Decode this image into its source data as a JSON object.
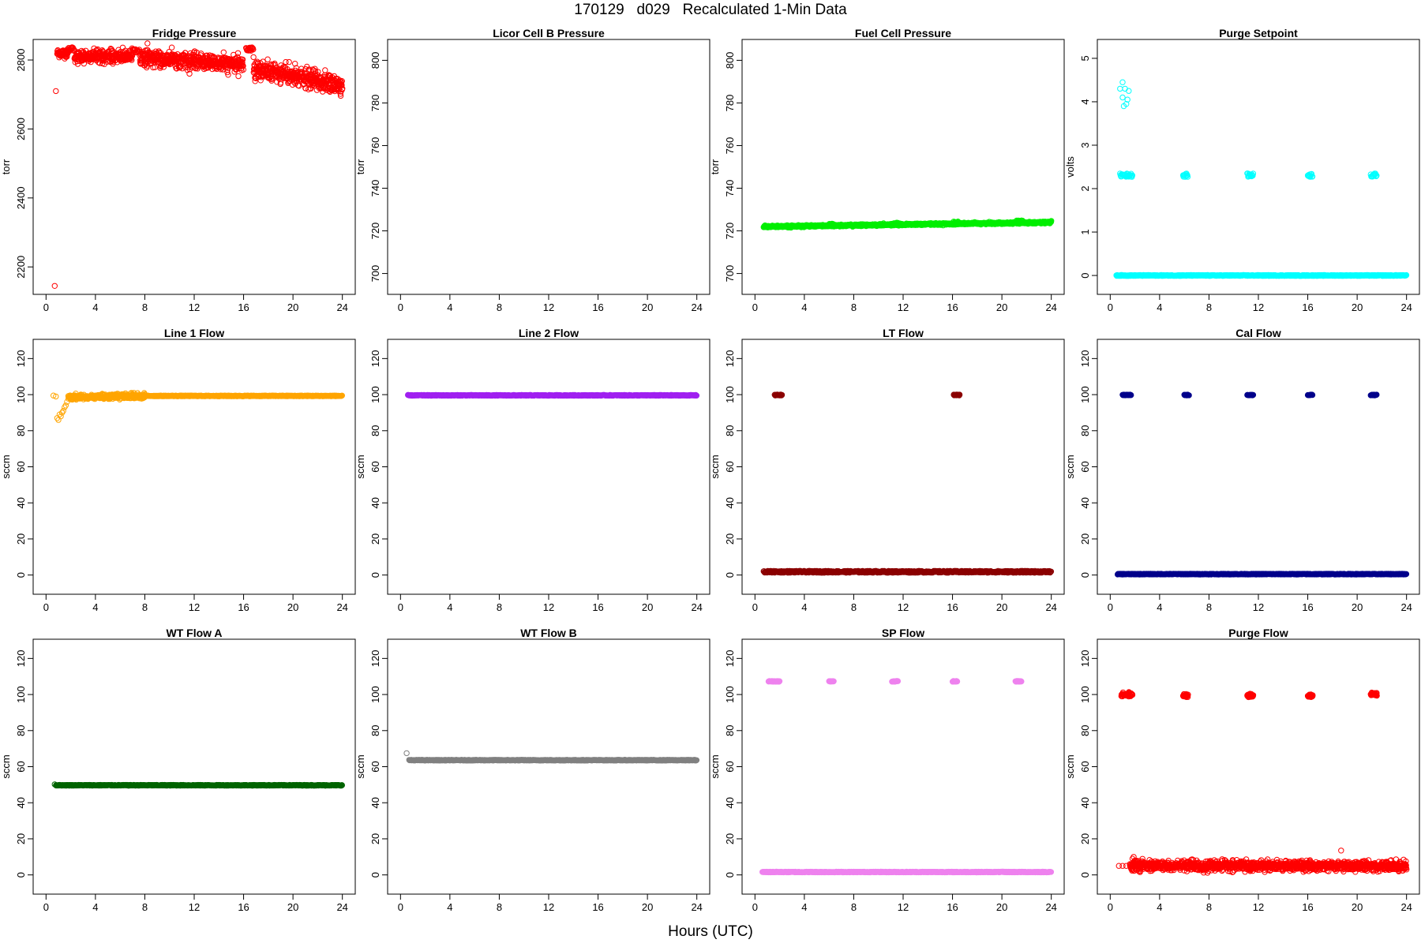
{
  "figure": {
    "title": "170129   d029   Recalculated 1-Min Data",
    "xlabel": "Hours (UTC)"
  },
  "chart_data": [
    {
      "type": "scatter",
      "title": "Fridge Pressure",
      "ylabel": "torr",
      "xlim": [
        0,
        24
      ],
      "ylim": [
        2150,
        2830
      ],
      "xticks": [
        0,
        4,
        8,
        12,
        16,
        20,
        24
      ],
      "yticks": [
        2200,
        2400,
        2600,
        2800
      ],
      "color": "#ff0000",
      "marker": "open-circle",
      "series": [
        {
          "kind": "points",
          "x": [
            0.7,
            0.8
          ],
          "y": [
            2145,
            2710
          ]
        },
        {
          "kind": "noisy",
          "x0": 0.9,
          "x1": 1.8,
          "y0": 2820,
          "y1": 2820,
          "noise": 12
        },
        {
          "kind": "band",
          "x0": 1.8,
          "x1": 2.3,
          "y": 2832,
          "spread": 5
        },
        {
          "kind": "noisy",
          "x0": 2.3,
          "x1": 7.0,
          "y0": 2810,
          "y1": 2810,
          "noise": 18
        },
        {
          "kind": "band",
          "x0": 7.0,
          "x1": 7.6,
          "y": 2827,
          "spread": 5
        },
        {
          "kind": "noisy",
          "x0": 7.6,
          "x1": 16.0,
          "y0": 2808,
          "y1": 2785,
          "noise": 22
        },
        {
          "kind": "band",
          "x0": 16.2,
          "x1": 16.8,
          "y": 2832,
          "spread": 5
        },
        {
          "kind": "noisy",
          "x0": 16.8,
          "x1": 24.0,
          "y0": 2775,
          "y1": 2725,
          "noise": 28
        }
      ]
    },
    {
      "type": "scatter",
      "title": "Licor Cell B Pressure",
      "ylabel": "torr",
      "xlim": [
        0,
        24
      ],
      "ylim": [
        695,
        805
      ],
      "xticks": [
        0,
        4,
        8,
        12,
        16,
        20,
        24
      ],
      "yticks": [
        700,
        720,
        740,
        760,
        780,
        800
      ],
      "color": "#000000",
      "marker": "open-circle",
      "series": []
    },
    {
      "type": "scatter",
      "title": "Fuel Cell Pressure",
      "ylabel": "torr",
      "xlim": [
        0,
        24
      ],
      "ylim": [
        695,
        805
      ],
      "xticks": [
        0,
        4,
        8,
        12,
        16,
        20,
        24
      ],
      "yticks": [
        700,
        720,
        740,
        760,
        780,
        800
      ],
      "color": "#00ee00",
      "marker": "open-circle",
      "series": [
        {
          "kind": "noisy",
          "x0": 0.7,
          "x1": 24.0,
          "y0": 722,
          "y1": 724,
          "noise": 0.4
        },
        {
          "kind": "band",
          "x0": 6.0,
          "x1": 6.4,
          "y": 723,
          "spread": 0.4
        },
        {
          "kind": "band",
          "x0": 11.2,
          "x1": 11.7,
          "y": 723.5,
          "spread": 0.4
        },
        {
          "kind": "band",
          "x0": 16.1,
          "x1": 16.5,
          "y": 724,
          "spread": 0.4
        },
        {
          "kind": "band",
          "x0": 21.2,
          "x1": 21.7,
          "y": 724.5,
          "spread": 0.4
        }
      ]
    },
    {
      "type": "scatter",
      "title": "Purge Setpoint",
      "ylabel": "volts",
      "xlim": [
        0,
        24
      ],
      "ylim": [
        -0.2,
        5.2
      ],
      "xticks": [
        0,
        4,
        8,
        12,
        16,
        20,
        24
      ],
      "yticks": [
        0,
        1,
        2,
        3,
        4,
        5
      ],
      "color": "#00ffff",
      "marker": "open-circle",
      "series": [
        {
          "kind": "points",
          "x": [
            0.8,
            1.0,
            1.2,
            1.0,
            1.1,
            1.3,
            1.4,
            1.5,
            1.2
          ],
          "y": [
            4.3,
            4.45,
            4.3,
            4.1,
            3.9,
            3.95,
            4.05,
            4.25,
            0
          ]
        },
        {
          "kind": "band",
          "x0": 0.8,
          "x1": 1.8,
          "y": 2.31,
          "spread": 0.04
        },
        {
          "kind": "band",
          "x0": 5.9,
          "x1": 6.3,
          "y": 2.31,
          "spread": 0.04
        },
        {
          "kind": "band",
          "x0": 11.1,
          "x1": 11.6,
          "y": 2.31,
          "spread": 0.04
        },
        {
          "kind": "band",
          "x0": 16.0,
          "x1": 16.4,
          "y": 2.31,
          "spread": 0.04
        },
        {
          "kind": "band",
          "x0": 21.1,
          "x1": 21.6,
          "y": 2.31,
          "spread": 0.04
        },
        {
          "kind": "band",
          "x0": 0.5,
          "x1": 24.0,
          "y": 0,
          "spread": 0.01
        }
      ]
    },
    {
      "type": "scatter",
      "title": "Line 1 Flow",
      "ylabel": "sccm",
      "xlim": [
        0,
        24
      ],
      "ylim": [
        -5,
        125
      ],
      "xticks": [
        0,
        4,
        8,
        12,
        16,
        20,
        24
      ],
      "yticks": [
        0,
        20,
        40,
        60,
        80,
        100,
        120
      ],
      "color": "#ffa500",
      "marker": "open-circle",
      "series": [
        {
          "kind": "points",
          "x": [
            0.6,
            0.8,
            0.9,
            1.0,
            1.1,
            1.2,
            1.3,
            1.4,
            1.5,
            1.6,
            1.7
          ],
          "y": [
            99.5,
            99,
            87,
            86,
            89,
            88,
            90,
            91,
            93,
            94,
            96
          ]
        },
        {
          "kind": "noisy",
          "x0": 1.8,
          "x1": 8.0,
          "y0": 98.5,
          "y1": 99.3,
          "noise": 1.3
        },
        {
          "kind": "band",
          "x0": 8.0,
          "x1": 24.0,
          "y": 99.3,
          "spread": 0.2
        }
      ]
    },
    {
      "type": "scatter",
      "title": "Line 2 Flow",
      "ylabel": "sccm",
      "xlim": [
        0,
        24
      ],
      "ylim": [
        -5,
        125
      ],
      "xticks": [
        0,
        4,
        8,
        12,
        16,
        20,
        24
      ],
      "yticks": [
        0,
        20,
        40,
        60,
        80,
        100,
        120
      ],
      "color": "#a020f0",
      "marker": "open-circle",
      "series": [
        {
          "kind": "band",
          "x0": 0.6,
          "x1": 24.0,
          "y": 99.6,
          "spread": 0.2
        }
      ]
    },
    {
      "type": "scatter",
      "title": "LT Flow",
      "ylabel": "sccm",
      "xlim": [
        0,
        24
      ],
      "ylim": [
        -5,
        125
      ],
      "xticks": [
        0,
        4,
        8,
        12,
        16,
        20,
        24
      ],
      "yticks": [
        0,
        20,
        40,
        60,
        80,
        100,
        120
      ],
      "color": "#8b0000",
      "marker": "open-circle",
      "series": [
        {
          "kind": "band",
          "x0": 1.6,
          "x1": 2.2,
          "y": 99.8,
          "spread": 0.3
        },
        {
          "kind": "band",
          "x0": 16.1,
          "x1": 16.6,
          "y": 99.8,
          "spread": 0.3
        },
        {
          "kind": "band",
          "x0": 0.7,
          "x1": 24.0,
          "y": 1.8,
          "spread": 0.5
        }
      ]
    },
    {
      "type": "scatter",
      "title": "Cal Flow",
      "ylabel": "sccm",
      "xlim": [
        0,
        24
      ],
      "ylim": [
        -5,
        125
      ],
      "xticks": [
        0,
        4,
        8,
        12,
        16,
        20,
        24
      ],
      "yticks": [
        0,
        20,
        40,
        60,
        80,
        100,
        120
      ],
      "color": "#00008b",
      "marker": "open-circle",
      "series": [
        {
          "kind": "band",
          "x0": 1.0,
          "x1": 1.7,
          "y": 99.8,
          "spread": 0.2
        },
        {
          "kind": "band",
          "x0": 6.0,
          "x1": 6.4,
          "y": 99.8,
          "spread": 0.2
        },
        {
          "kind": "band",
          "x0": 11.1,
          "x1": 11.6,
          "y": 99.8,
          "spread": 0.2
        },
        {
          "kind": "band",
          "x0": 16.0,
          "x1": 16.4,
          "y": 99.8,
          "spread": 0.2
        },
        {
          "kind": "band",
          "x0": 21.1,
          "x1": 21.6,
          "y": 99.8,
          "spread": 0.2
        },
        {
          "kind": "band",
          "x0": 0.6,
          "x1": 24.0,
          "y": 0.5,
          "spread": 0.2
        }
      ]
    },
    {
      "type": "scatter",
      "title": "WT Flow A",
      "ylabel": "sccm",
      "xlim": [
        0,
        24
      ],
      "ylim": [
        -5,
        125
      ],
      "xticks": [
        0,
        4,
        8,
        12,
        16,
        20,
        24
      ],
      "yticks": [
        0,
        20,
        40,
        60,
        80,
        100,
        120
      ],
      "color": "#006400",
      "marker": "open-circle",
      "series": [
        {
          "kind": "points",
          "x": [
            0.7
          ],
          "y": [
            50.2
          ]
        },
        {
          "kind": "band",
          "x0": 0.8,
          "x1": 24.0,
          "y": 49.7,
          "spread": 0.2
        }
      ]
    },
    {
      "type": "scatter",
      "title": "WT Flow B",
      "ylabel": "sccm",
      "xlim": [
        0,
        24
      ],
      "ylim": [
        -5,
        125
      ],
      "xticks": [
        0,
        4,
        8,
        12,
        16,
        20,
        24
      ],
      "yticks": [
        0,
        20,
        40,
        60,
        80,
        100,
        120
      ],
      "color": "#808080",
      "marker": "open-circle",
      "series": [
        {
          "kind": "points",
          "x": [
            0.5
          ],
          "y": [
            67.5
          ]
        },
        {
          "kind": "band",
          "x0": 0.7,
          "x1": 24.0,
          "y": 63.6,
          "spread": 0.2
        }
      ]
    },
    {
      "type": "scatter",
      "title": "SP Flow",
      "ylabel": "sccm",
      "xlim": [
        0,
        24
      ],
      "ylim": [
        -5,
        125
      ],
      "xticks": [
        0,
        4,
        8,
        12,
        16,
        20,
        24
      ],
      "yticks": [
        0,
        20,
        40,
        60,
        80,
        100,
        120
      ],
      "color": "#ee82ee",
      "marker": "open-circle",
      "series": [
        {
          "kind": "band",
          "x0": 1.1,
          "x1": 2.0,
          "y": 107.3,
          "spread": 0.2
        },
        {
          "kind": "band",
          "x0": 6.0,
          "x1": 6.4,
          "y": 107.3,
          "spread": 0.2
        },
        {
          "kind": "band",
          "x0": 11.1,
          "x1": 11.6,
          "y": 107.3,
          "spread": 0.2
        },
        {
          "kind": "band",
          "x0": 16.0,
          "x1": 16.4,
          "y": 107.3,
          "spread": 0.2
        },
        {
          "kind": "band",
          "x0": 21.1,
          "x1": 21.6,
          "y": 107.3,
          "spread": 0.2
        },
        {
          "kind": "band",
          "x0": 0.6,
          "x1": 24.0,
          "y": 1.6,
          "spread": 0.2
        }
      ]
    },
    {
      "type": "scatter",
      "title": "Purge Flow",
      "ylabel": "sccm",
      "xlim": [
        0,
        24
      ],
      "ylim": [
        -5,
        125
      ],
      "xticks": [
        0,
        4,
        8,
        12,
        16,
        20,
        24
      ],
      "yticks": [
        0,
        20,
        40,
        60,
        80,
        100,
        120
      ],
      "color": "#ff0000",
      "marker": "open-circle",
      "series": [
        {
          "kind": "noisy",
          "x0": 0.9,
          "x1": 1.8,
          "y0": 100,
          "y1": 100,
          "noise": 1.2
        },
        {
          "kind": "noisy",
          "x0": 5.9,
          "x1": 6.3,
          "y0": 99.5,
          "y1": 99.5,
          "noise": 0.8
        },
        {
          "kind": "noisy",
          "x0": 11.1,
          "x1": 11.6,
          "y0": 99.5,
          "y1": 99.5,
          "noise": 0.8
        },
        {
          "kind": "noisy",
          "x0": 16.0,
          "x1": 16.4,
          "y0": 99.2,
          "y1": 99.2,
          "noise": 0.6
        },
        {
          "kind": "noisy",
          "x0": 21.1,
          "x1": 21.6,
          "y0": 100.3,
          "y1": 100.3,
          "noise": 1.0
        },
        {
          "kind": "points",
          "x": [
            0.7,
            1.0,
            1.3,
            1.6,
            1.8,
            1.9,
            2.0,
            2.1,
            18.7
          ],
          "y": [
            5,
            5,
            5,
            6,
            9,
            10,
            8,
            7,
            13.5
          ]
        },
        {
          "kind": "noisy",
          "x0": 1.6,
          "x1": 24.0,
          "y0": 5,
          "y1": 5,
          "noise": 2.6
        }
      ]
    }
  ]
}
